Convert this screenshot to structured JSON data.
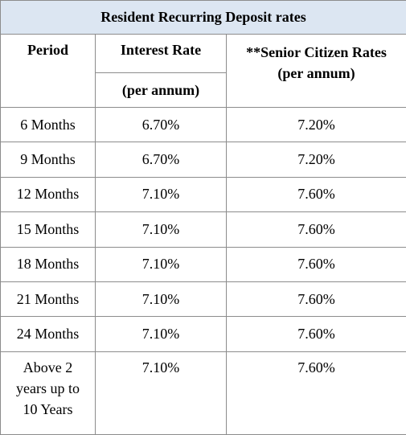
{
  "table": {
    "title": "Resident Recurring Deposit rates",
    "headers": {
      "period": "Period",
      "interest_rate": "Interest Rate",
      "interest_rate_sub": "(per annum)",
      "senior_rate": "**Senior Citizen Rates",
      "senior_rate_sub": "(per annum)"
    },
    "rows": [
      {
        "period": "6 Months",
        "interest_rate": "6.70%",
        "senior_rate": "7.20%"
      },
      {
        "period": "9 Months",
        "interest_rate": "6.70%",
        "senior_rate": "7.20%"
      },
      {
        "period": "12 Months",
        "interest_rate": "7.10%",
        "senior_rate": "7.60%"
      },
      {
        "period": "15 Months",
        "interest_rate": "7.10%",
        "senior_rate": "7.60%"
      },
      {
        "period": "18 Months",
        "interest_rate": "7.10%",
        "senior_rate": "7.60%"
      },
      {
        "period": "21 Months",
        "interest_rate": "7.10%",
        "senior_rate": "7.60%"
      },
      {
        "period": "24 Months",
        "interest_rate": "7.10%",
        "senior_rate": "7.60%"
      },
      {
        "period": "Above 2 years up to 10 Years",
        "interest_rate": "7.10%",
        "senior_rate": "7.60%"
      }
    ]
  },
  "colors": {
    "title_background": "#dce6f2",
    "border": "#8c8c8c"
  }
}
